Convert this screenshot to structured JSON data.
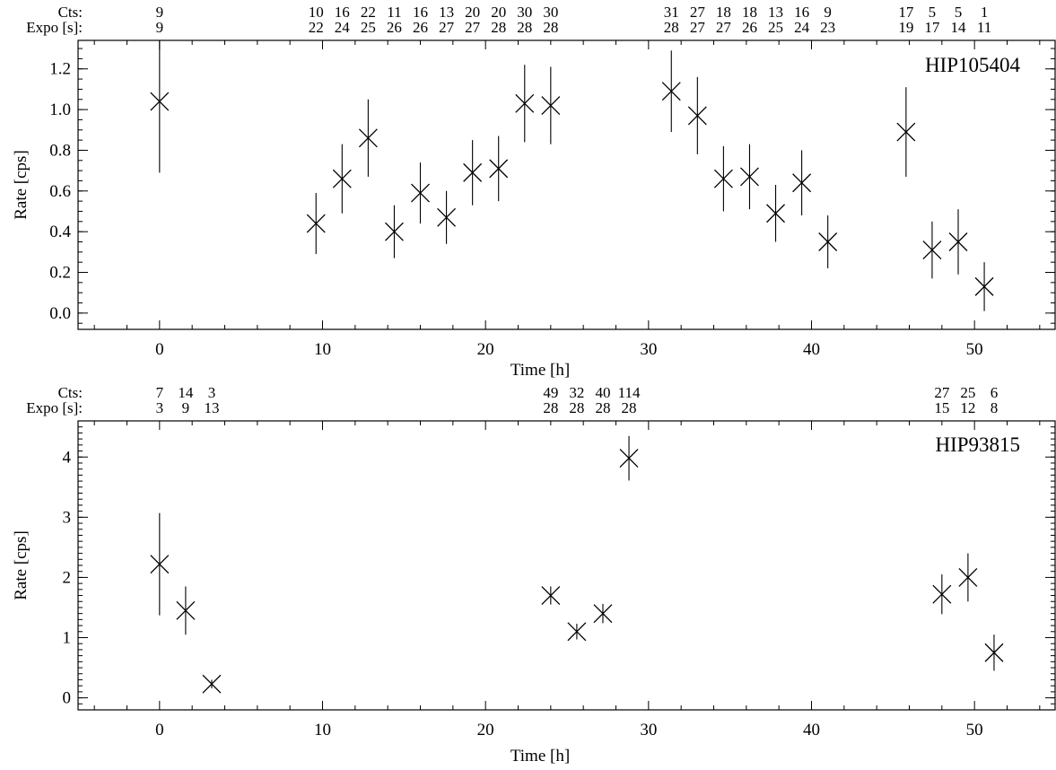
{
  "chart_data": [
    {
      "type": "scatter",
      "title": "HIP105404",
      "xlabel": "Time [h]",
      "ylabel": "Rate [cps]",
      "xlim": [
        -5,
        55
      ],
      "ylim": [
        -0.08,
        1.34
      ],
      "xticks": [
        "0",
        "10",
        "20",
        "30",
        "40",
        "50"
      ],
      "yticks": [
        "0.0",
        "0.2",
        "0.4",
        "0.6",
        "0.8",
        "1.0",
        "1.2"
      ],
      "row_labels": [
        "Cts:",
        "Expo [s]:"
      ],
      "points": [
        {
          "x": 0.0,
          "y": 1.04,
          "err": 0.35,
          "cts": "9",
          "expo": "9"
        },
        {
          "x": 9.6,
          "y": 0.44,
          "err": 0.15,
          "cts": "10",
          "expo": "22"
        },
        {
          "x": 11.2,
          "y": 0.66,
          "err": 0.17,
          "cts": "16",
          "expo": "24"
        },
        {
          "x": 12.8,
          "y": 0.86,
          "err": 0.19,
          "cts": "22",
          "expo": "25"
        },
        {
          "x": 14.4,
          "y": 0.4,
          "err": 0.13,
          "cts": "11",
          "expo": "26"
        },
        {
          "x": 16.0,
          "y": 0.59,
          "err": 0.15,
          "cts": "16",
          "expo": "26"
        },
        {
          "x": 17.6,
          "y": 0.47,
          "err": 0.13,
          "cts": "13",
          "expo": "27"
        },
        {
          "x": 19.2,
          "y": 0.69,
          "err": 0.16,
          "cts": "20",
          "expo": "27"
        },
        {
          "x": 20.8,
          "y": 0.71,
          "err": 0.16,
          "cts": "20",
          "expo": "28"
        },
        {
          "x": 22.4,
          "y": 1.03,
          "err": 0.19,
          "cts": "30",
          "expo": "28"
        },
        {
          "x": 24.0,
          "y": 1.02,
          "err": 0.19,
          "cts": "30",
          "expo": "28"
        },
        {
          "x": 31.4,
          "y": 1.09,
          "err": 0.2,
          "cts": "31",
          "expo": "28"
        },
        {
          "x": 33.0,
          "y": 0.97,
          "err": 0.19,
          "cts": "27",
          "expo": "27"
        },
        {
          "x": 34.6,
          "y": 0.66,
          "err": 0.16,
          "cts": "18",
          "expo": "27"
        },
        {
          "x": 36.2,
          "y": 0.67,
          "err": 0.16,
          "cts": "18",
          "expo": "26"
        },
        {
          "x": 37.8,
          "y": 0.49,
          "err": 0.14,
          "cts": "13",
          "expo": "25"
        },
        {
          "x": 39.4,
          "y": 0.64,
          "err": 0.16,
          "cts": "16",
          "expo": "24"
        },
        {
          "x": 41.0,
          "y": 0.35,
          "err": 0.13,
          "cts": "9",
          "expo": "23"
        },
        {
          "x": 45.8,
          "y": 0.89,
          "err": 0.22,
          "cts": "17",
          "expo": "19"
        },
        {
          "x": 47.4,
          "y": 0.31,
          "err": 0.14,
          "cts": "5",
          "expo": "17"
        },
        {
          "x": 49.0,
          "y": 0.35,
          "err": 0.16,
          "cts": "5",
          "expo": "14"
        },
        {
          "x": 50.6,
          "y": 0.13,
          "err": 0.12,
          "cts": "1",
          "expo": "11"
        }
      ]
    },
    {
      "type": "scatter",
      "title": "HIP93815",
      "xlabel": "Time [h]",
      "ylabel": "Rate [cps]",
      "xlim": [
        -5,
        55
      ],
      "ylim": [
        -0.2,
        4.6
      ],
      "xticks": [
        "0",
        "10",
        "20",
        "30",
        "40",
        "50"
      ],
      "yticks": [
        "0",
        "1",
        "2",
        "3",
        "4"
      ],
      "row_labels": [
        "Cts:",
        "Expo [s]:"
      ],
      "points": [
        {
          "x": 0.0,
          "y": 2.22,
          "err": 0.85,
          "cts": "7",
          "expo": "3"
        },
        {
          "x": 1.6,
          "y": 1.45,
          "err": 0.4,
          "cts": "14",
          "expo": "9"
        },
        {
          "x": 3.2,
          "y": 0.23,
          "err": 0.07,
          "cts": "3",
          "expo": "13"
        },
        {
          "x": 24.0,
          "y": 1.7,
          "err": 0.15,
          "cts": "49",
          "expo": "28"
        },
        {
          "x": 25.6,
          "y": 1.1,
          "err": 0.13,
          "cts": "32",
          "expo": "28"
        },
        {
          "x": 27.2,
          "y": 1.4,
          "err": 0.16,
          "cts": "40",
          "expo": "28"
        },
        {
          "x": 28.8,
          "y": 3.98,
          "err": 0.37,
          "cts": "114",
          "expo": "28"
        },
        {
          "x": 48.0,
          "y": 1.72,
          "err": 0.33,
          "cts": "27",
          "expo": "15"
        },
        {
          "x": 49.6,
          "y": 2.0,
          "err": 0.4,
          "cts": "25",
          "expo": "12"
        },
        {
          "x": 51.2,
          "y": 0.75,
          "err": 0.3,
          "cts": "6",
          "expo": "8"
        }
      ]
    }
  ]
}
